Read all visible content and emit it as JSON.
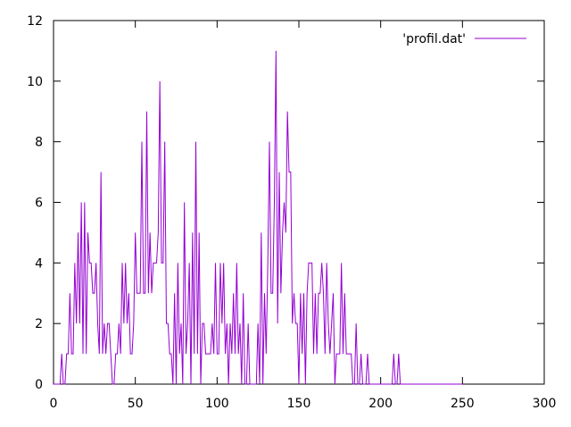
{
  "chart_data": {
    "type": "line",
    "x": [
      0,
      1,
      2,
      3,
      4,
      5,
      6,
      7,
      8,
      9,
      10,
      11,
      12,
      13,
      14,
      15,
      16,
      17,
      18,
      19,
      20,
      21,
      22,
      23,
      24,
      25,
      26,
      27,
      28,
      29,
      30,
      31,
      32,
      33,
      34,
      35,
      36,
      37,
      38,
      39,
      40,
      41,
      42,
      43,
      44,
      45,
      46,
      47,
      48,
      49,
      50,
      51,
      52,
      53,
      54,
      55,
      56,
      57,
      58,
      59,
      60,
      61,
      62,
      63,
      64,
      65,
      66,
      67,
      68,
      69,
      70,
      71,
      72,
      73,
      74,
      75,
      76,
      77,
      78,
      79,
      80,
      81,
      82,
      83,
      84,
      85,
      86,
      87,
      88,
      89,
      90,
      91,
      92,
      93,
      94,
      95,
      96,
      97,
      98,
      99,
      100,
      101,
      102,
      103,
      104,
      105,
      106,
      107,
      108,
      109,
      110,
      111,
      112,
      113,
      114,
      115,
      116,
      117,
      118,
      119,
      120,
      121,
      122,
      123,
      124,
      125,
      126,
      127,
      128,
      129,
      130,
      131,
      132,
      133,
      134,
      135,
      136,
      137,
      138,
      139,
      140,
      141,
      142,
      143,
      144,
      145,
      146,
      147,
      148,
      149,
      150,
      151,
      152,
      153,
      154,
      155,
      156,
      157,
      158,
      159,
      160,
      161,
      162,
      163,
      164,
      165,
      166,
      167,
      168,
      169,
      170,
      171,
      172,
      173,
      174,
      175,
      176,
      177,
      178,
      179,
      180,
      181,
      182,
      183,
      184,
      185,
      186,
      187,
      188,
      189,
      190,
      191,
      192,
      193,
      194,
      195,
      196,
      197,
      198,
      199,
      200,
      201,
      202,
      203,
      204,
      205,
      206,
      207,
      208,
      209,
      210,
      211,
      212,
      213,
      214,
      215,
      216,
      217,
      218,
      219,
      220,
      221,
      222,
      223,
      224,
      225,
      226,
      227,
      228,
      229,
      230,
      231,
      232,
      233,
      234,
      235,
      236,
      237,
      238,
      239,
      240,
      241,
      242,
      243,
      244,
      245,
      246,
      247,
      248,
      249,
      250
    ],
    "series": [
      {
        "name": "'profil.dat'",
        "color": "#9400d3",
        "values": [
          0,
          0,
          0,
          0,
          0,
          1,
          0,
          0,
          1,
          1,
          3,
          1,
          1,
          4,
          2,
          5,
          2,
          6,
          1,
          6,
          1,
          5,
          4,
          4,
          3,
          3,
          4,
          2,
          1,
          7,
          1,
          2,
          1,
          2,
          2,
          1,
          0,
          0,
          1,
          1,
          2,
          1,
          4,
          2,
          4,
          2,
          3,
          1,
          1,
          2,
          5,
          3,
          3,
          3,
          8,
          3,
          3,
          9,
          3,
          5,
          3,
          4,
          4,
          4,
          5,
          10,
          4,
          4,
          8,
          2,
          2,
          1,
          1,
          0,
          3,
          0,
          4,
          1,
          2,
          0,
          6,
          1,
          2,
          4,
          0,
          5,
          1,
          8,
          1,
          5,
          0,
          2,
          2,
          1,
          1,
          1,
          1,
          2,
          1,
          4,
          1,
          1,
          4,
          2,
          4,
          1,
          2,
          0,
          2,
          1,
          3,
          1,
          4,
          1,
          2,
          0,
          3,
          0,
          0,
          2,
          0,
          0,
          0,
          0,
          0,
          2,
          0,
          5,
          0,
          3,
          1,
          4,
          8,
          3,
          3,
          6,
          11,
          2,
          7,
          3,
          5,
          6,
          5,
          9,
          7,
          7,
          2,
          3,
          2,
          2,
          0,
          3,
          1,
          3,
          0,
          3,
          4,
          4,
          4,
          1,
          3,
          1,
          3,
          3,
          4,
          3,
          1,
          4,
          2,
          1,
          2,
          3,
          0,
          1,
          1,
          1,
          4,
          1,
          3,
          1,
          1,
          1,
          1,
          0,
          0,
          2,
          0,
          0,
          1,
          0,
          0,
          0,
          1,
          0,
          0,
          0,
          0,
          0,
          0,
          0,
          0,
          0,
          0,
          0,
          0,
          0,
          0,
          0,
          1,
          0,
          0,
          1,
          0,
          0,
          0,
          0,
          0,
          0,
          0,
          0,
          0,
          0,
          0,
          0,
          0,
          0,
          0,
          0,
          0,
          0,
          0,
          0,
          0,
          0,
          0,
          0,
          0,
          0,
          0,
          0,
          0,
          0,
          0,
          0,
          0,
          0,
          0,
          0,
          0,
          0,
          0
        ]
      }
    ],
    "xlim": [
      0,
      300
    ],
    "ylim": [
      0,
      12
    ],
    "xticks": [
      0,
      50,
      100,
      150,
      200,
      250,
      300
    ],
    "yticks": [
      0,
      2,
      4,
      6,
      8,
      10,
      12
    ],
    "legend": "top-right"
  }
}
